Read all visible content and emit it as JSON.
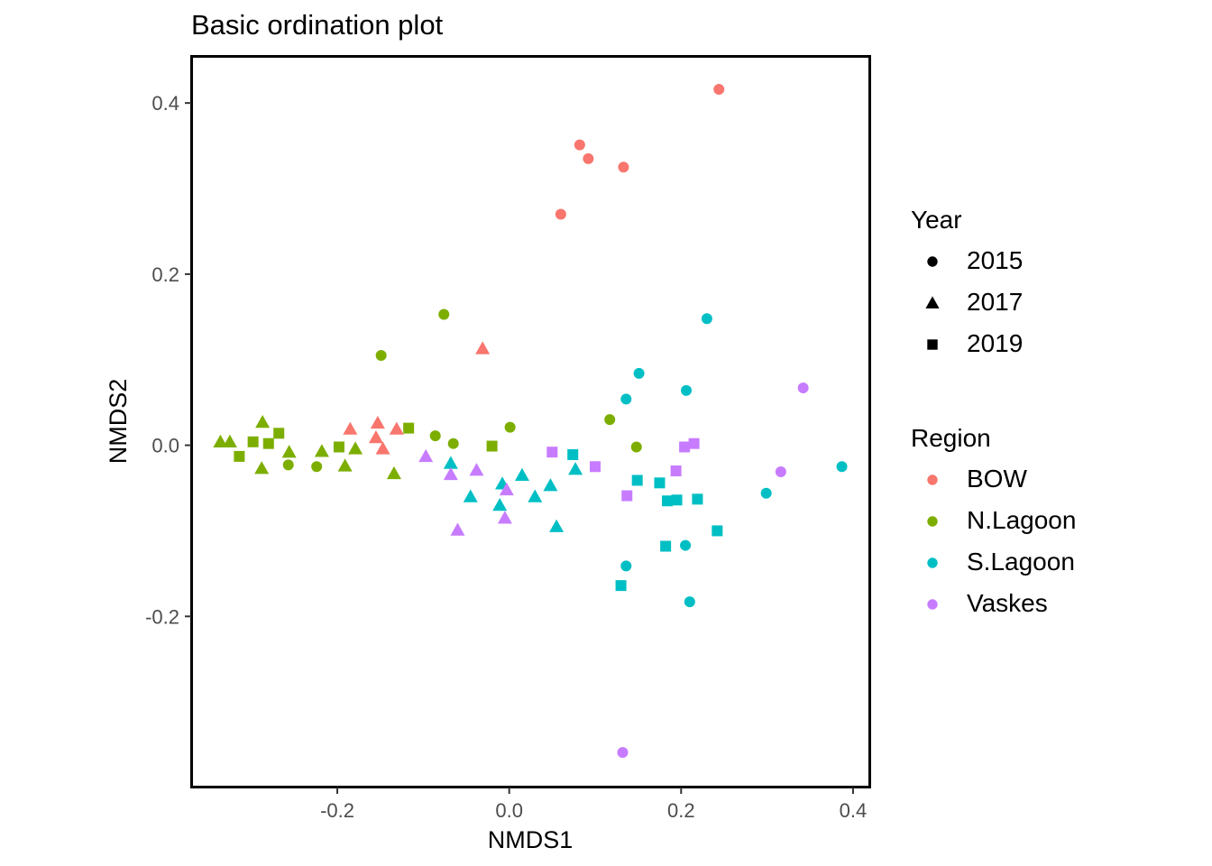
{
  "chart_data": {
    "type": "scatter",
    "title": "Basic ordination plot",
    "xlabel": "NMDS1",
    "ylabel": "NMDS2",
    "xlim": [
      -0.37,
      0.42
    ],
    "ylim": [
      -0.4,
      0.455
    ],
    "xticks": [
      -0.2,
      0.0,
      0.2,
      0.4
    ],
    "yticks": [
      -0.2,
      0.0,
      0.2,
      0.4
    ],
    "xtick_labels": [
      "-0.2",
      "0.0",
      "0.2",
      "0.4"
    ],
    "ytick_labels": [
      "-0.2",
      "0.0",
      "0.2",
      "0.4"
    ],
    "grid": false,
    "legend_position": "right",
    "shape_legend": {
      "title": "Year",
      "entries": [
        {
          "label": "2015",
          "shape": "circle"
        },
        {
          "label": "2017",
          "shape": "triangle"
        },
        {
          "label": "2019",
          "shape": "square"
        }
      ]
    },
    "color_legend": {
      "title": "Region",
      "entries": [
        {
          "label": "BOW",
          "color": "#F8766D"
        },
        {
          "label": "N.Lagoon",
          "color": "#7CAE00"
        },
        {
          "label": "S.Lagoon",
          "color": "#00BFC4"
        },
        {
          "label": "Vaskes",
          "color": "#C77CFF"
        }
      ]
    },
    "series": [
      {
        "name": "BOW",
        "year": "2015",
        "color": "#F8766D",
        "shape": "circle",
        "points": [
          [
            0.244,
            0.416
          ],
          [
            0.082,
            0.351
          ],
          [
            0.092,
            0.335
          ],
          [
            0.133,
            0.325
          ],
          [
            0.06,
            0.27
          ]
        ]
      },
      {
        "name": "BOW",
        "year": "2017",
        "color": "#F8766D",
        "shape": "triangle",
        "points": [
          [
            -0.031,
            0.113
          ],
          [
            -0.153,
            0.026
          ],
          [
            -0.185,
            0.019
          ],
          [
            -0.131,
            0.019
          ],
          [
            -0.155,
            0.009
          ],
          [
            -0.147,
            -0.004
          ]
        ]
      },
      {
        "name": "N.Lagoon",
        "year": "2015",
        "color": "#7CAE00",
        "shape": "circle",
        "points": [
          [
            -0.076,
            0.153
          ],
          [
            -0.149,
            0.105
          ],
          [
            0.117,
            0.03
          ],
          [
            0.001,
            0.021
          ],
          [
            -0.086,
            0.011
          ],
          [
            -0.065,
            0.002
          ],
          [
            0.148,
            -0.002
          ],
          [
            -0.257,
            -0.023
          ],
          [
            -0.224,
            -0.025
          ]
        ]
      },
      {
        "name": "N.Lagoon",
        "year": "2017",
        "color": "#7CAE00",
        "shape": "triangle",
        "points": [
          [
            -0.287,
            0.027
          ],
          [
            -0.336,
            0.004
          ],
          [
            -0.325,
            0.004
          ],
          [
            -0.179,
            -0.004
          ],
          [
            -0.218,
            -0.007
          ],
          [
            -0.256,
            -0.008
          ],
          [
            -0.288,
            -0.027
          ],
          [
            -0.191,
            -0.024
          ],
          [
            -0.134,
            -0.033
          ]
        ]
      },
      {
        "name": "N.Lagoon",
        "year": "2019",
        "color": "#7CAE00",
        "shape": "square",
        "points": [
          [
            -0.117,
            0.02
          ],
          [
            -0.268,
            0.014
          ],
          [
            -0.298,
            0.004
          ],
          [
            -0.28,
            0.002
          ],
          [
            -0.198,
            -0.002
          ],
          [
            -0.02,
            -0.001
          ],
          [
            -0.314,
            -0.013
          ]
        ]
      },
      {
        "name": "S.Lagoon",
        "year": "2015",
        "color": "#00BFC4",
        "shape": "circle",
        "points": [
          [
            0.23,
            0.148
          ],
          [
            0.151,
            0.084
          ],
          [
            0.206,
            0.064
          ],
          [
            0.136,
            0.054
          ],
          [
            0.387,
            -0.025
          ],
          [
            0.299,
            -0.056
          ],
          [
            0.205,
            -0.117
          ],
          [
            0.136,
            -0.141
          ],
          [
            0.21,
            -0.183
          ]
        ]
      },
      {
        "name": "S.Lagoon",
        "year": "2017",
        "color": "#00BFC4",
        "shape": "triangle",
        "points": [
          [
            -0.068,
            -0.021
          ],
          [
            0.077,
            -0.028
          ],
          [
            0.015,
            -0.035
          ],
          [
            -0.008,
            -0.045
          ],
          [
            0.048,
            -0.047
          ],
          [
            -0.045,
            -0.06
          ],
          [
            0.03,
            -0.06
          ],
          [
            -0.011,
            -0.07
          ],
          [
            0.055,
            -0.095
          ]
        ]
      },
      {
        "name": "S.Lagoon",
        "year": "2019",
        "color": "#00BFC4",
        "shape": "square",
        "points": [
          [
            0.074,
            -0.011
          ],
          [
            0.149,
            -0.041
          ],
          [
            0.175,
            -0.044
          ],
          [
            0.219,
            -0.063
          ],
          [
            0.195,
            -0.064
          ],
          [
            0.184,
            -0.065
          ],
          [
            0.242,
            -0.1
          ],
          [
            0.182,
            -0.118
          ],
          [
            0.13,
            -0.164
          ]
        ]
      },
      {
        "name": "Vaskes",
        "year": "2015",
        "color": "#C77CFF",
        "shape": "circle",
        "points": [
          [
            0.342,
            0.067
          ],
          [
            0.316,
            -0.031
          ],
          [
            0.132,
            -0.359
          ]
        ]
      },
      {
        "name": "Vaskes",
        "year": "2017",
        "color": "#C77CFF",
        "shape": "triangle",
        "points": [
          [
            -0.097,
            -0.013
          ],
          [
            -0.068,
            -0.034
          ],
          [
            -0.038,
            -0.029
          ],
          [
            -0.003,
            -0.052
          ],
          [
            -0.06,
            -0.099
          ],
          [
            -0.005,
            -0.085
          ]
        ]
      },
      {
        "name": "Vaskes",
        "year": "2019",
        "color": "#C77CFF",
        "shape": "square",
        "points": [
          [
            0.05,
            -0.008
          ],
          [
            0.1,
            -0.025
          ],
          [
            0.194,
            -0.03
          ],
          [
            0.137,
            -0.059
          ],
          [
            0.204,
            -0.002
          ],
          [
            0.215,
            0.002
          ]
        ]
      }
    ]
  }
}
